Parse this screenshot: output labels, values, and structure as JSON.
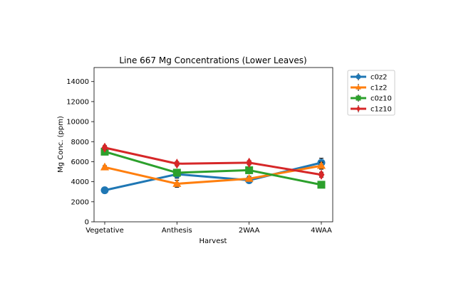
{
  "chart_data": {
    "type": "line",
    "title": "Line 667 Mg Concentrations (Lower Leaves)",
    "xlabel": "Harvest",
    "ylabel": "Mg Conc. (ppm)",
    "categories": [
      "Vegetative",
      "Anthesis",
      "2WAA",
      "4WAA"
    ],
    "ylim": [
      0,
      15400
    ],
    "yticks": [
      0,
      2000,
      4000,
      6000,
      8000,
      10000,
      12000,
      14000
    ],
    "grid": false,
    "legend_position": "outside-top-right",
    "series": [
      {
        "name": "c0z2",
        "color": "#1f77b4",
        "marker": "circle",
        "values": [
          3150,
          4750,
          4150,
          5900
        ],
        "errors": [
          150,
          400,
          250,
          450
        ]
      },
      {
        "name": "c1z2",
        "color": "#ff7f0e",
        "marker": "triangle",
        "values": [
          5450,
          3800,
          4300,
          5600
        ],
        "errors": [
          150,
          350,
          250,
          350
        ]
      },
      {
        "name": "c0z10",
        "color": "#2ca02c",
        "marker": "square",
        "values": [
          7000,
          4900,
          5150,
          3700
        ],
        "errors": [
          200,
          300,
          300,
          150
        ]
      },
      {
        "name": "c1z10",
        "color": "#d62728",
        "marker": "diamond",
        "values": [
          7400,
          5800,
          5900,
          4700
        ],
        "errors": [
          200,
          200,
          200,
          250
        ]
      }
    ]
  }
}
